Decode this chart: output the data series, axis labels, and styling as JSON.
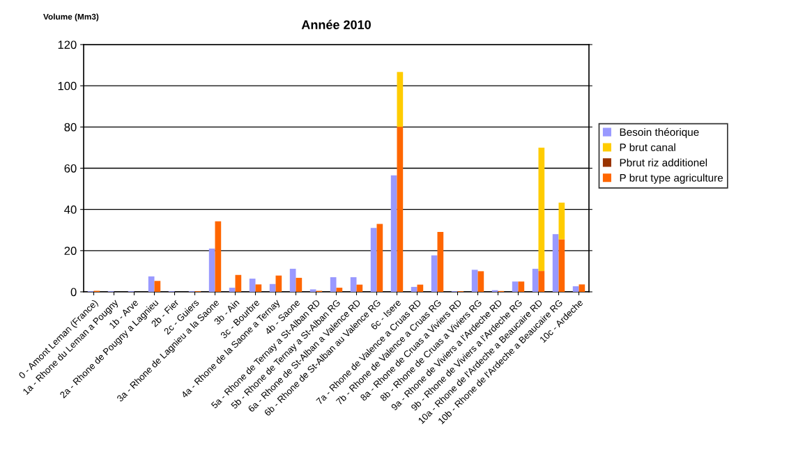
{
  "chart_data": {
    "type": "bar",
    "title": "Année 2010",
    "ylabel": "Volume (Mm3)",
    "categories": [
      "0 - Amont Leman (France)",
      "1a - Rhone du Leman a Pougny",
      "1b - Arve",
      "2a - Rhone de Pougny a Lagnieu",
      "2b - Fier",
      "2c - Guiers",
      "3a - Rhone de Lagnieu a la Saone",
      "3b - Ain",
      "3c - Bourbre",
      "4a - Rhone de la Saone a Ternay",
      "4b - Saone",
      "5a - Rhone de Ternay a St-Alban RD",
      "5b - Rhone de Ternay a St-Alban RG",
      "6a - Rhone de St-Alban a Valence RD",
      "6b - Rhone de St-Alban au Valence RG",
      "6c - Isere",
      "7a - Rhone de Valence a Cruas RD",
      "7b - Rhone de Valence a Cruas RG",
      "8a - Rhone de Cruas a Viviers RD",
      "8b - Rhone de Cruas a Viviers RG",
      "9a - Rhone de Viviers a l'Ardeche RD",
      "9b - Rhone de Viviers a l'Ardeche RG",
      "10a - Rhone de l'Ardeche a Beaucaire RD",
      "10b - Rhone de l'Ardeche a Beaucaire RG",
      "10c - Ardeche"
    ],
    "series": [
      {
        "name": "Besoin théorique",
        "color": "#9999ff",
        "values": [
          0.3,
          0.3,
          0.3,
          7.5,
          0.3,
          0.3,
          21,
          2,
          6.4,
          3.8,
          11.2,
          1.2,
          7.1,
          7.1,
          31,
          56.5,
          2.4,
          17.7,
          0.3,
          10.7,
          0.8,
          5,
          11.2,
          28,
          2.7
        ]
      },
      {
        "name": "P brut type agriculture",
        "color": "#ff6600",
        "values": [
          0.5,
          0,
          0,
          5.3,
          0,
          0.3,
          34.2,
          8.2,
          3.6,
          7.9,
          6.8,
          0.5,
          2,
          3.5,
          33,
          80.1,
          3.5,
          29.1,
          0.3,
          10,
          0.4,
          5,
          10.1,
          25.5,
          3.6
        ]
      },
      {
        "name": "Pbrut riz additionel",
        "color": "#993300",
        "values": [
          0,
          0,
          0,
          0,
          0,
          0,
          0,
          0,
          0,
          0,
          0,
          0,
          0,
          0,
          0,
          0,
          0,
          0,
          0,
          0,
          0,
          0,
          0,
          0,
          0
        ]
      },
      {
        "name": "P brut canal",
        "color": "#ffcc00",
        "base": [
          null,
          null,
          null,
          null,
          null,
          null,
          null,
          null,
          null,
          null,
          null,
          null,
          null,
          null,
          null,
          80.1,
          null,
          null,
          null,
          null,
          null,
          null,
          10.1,
          25.5,
          null
        ],
        "values": [
          null,
          null,
          null,
          null,
          null,
          null,
          null,
          null,
          null,
          null,
          null,
          null,
          null,
          null,
          null,
          26.6,
          null,
          null,
          null,
          null,
          null,
          null,
          59.9,
          17.8,
          null
        ]
      }
    ],
    "ylim": [
      0,
      120
    ],
    "yticks": [
      0,
      20,
      40,
      60,
      80,
      100,
      120
    ],
    "grid": "y",
    "legend": "right"
  }
}
